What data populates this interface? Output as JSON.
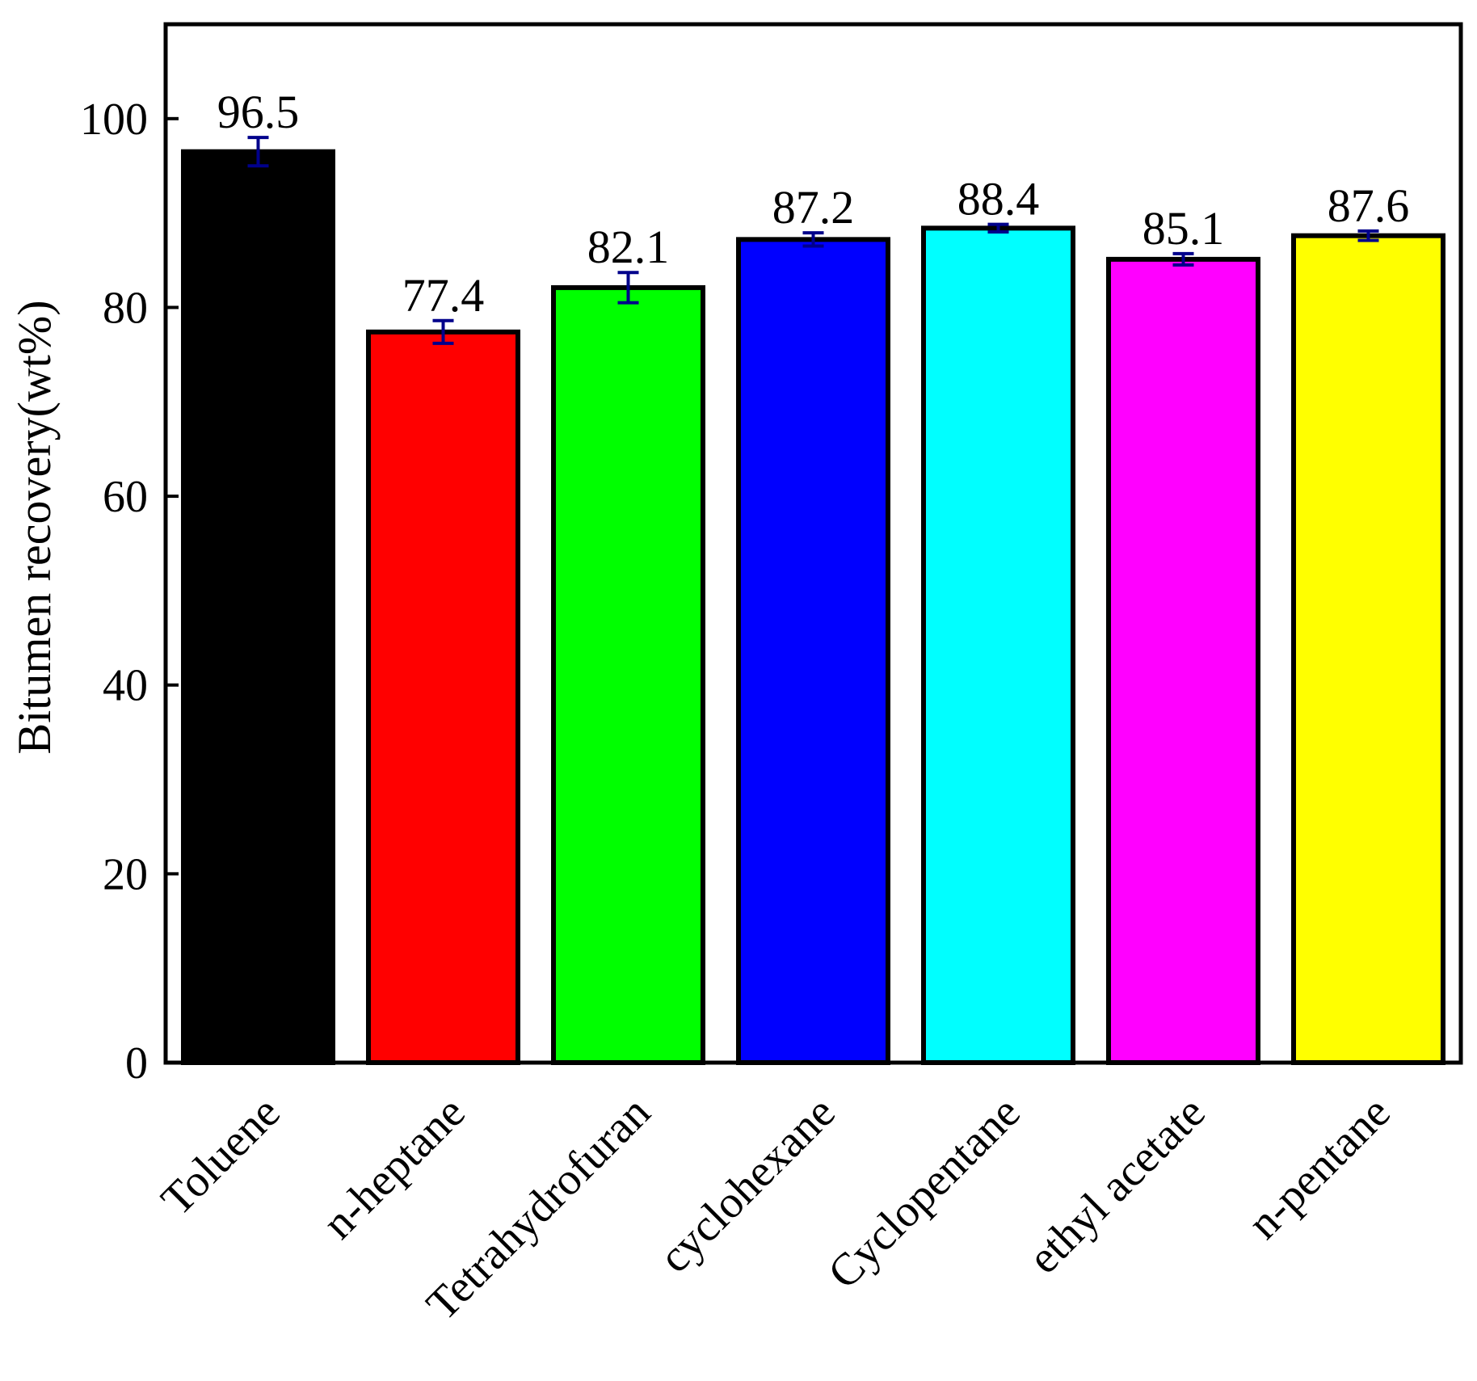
{
  "chart_data": {
    "type": "bar",
    "title": "",
    "xlabel": "",
    "ylabel": "Bitumen recovery(wt%)",
    "ylim": [
      0,
      110
    ],
    "yticks": [
      0,
      20,
      40,
      60,
      80,
      100
    ],
    "grid": false,
    "categories": [
      "Toluene",
      "n-heptane",
      "Tetrahydrofuran",
      "cyclohexane",
      "Cyclopentane",
      "ethyl acetate",
      "n-pentane"
    ],
    "values": [
      96.5,
      77.4,
      82.1,
      87.2,
      88.4,
      85.1,
      87.6
    ],
    "value_labels": [
      "96.5",
      "77.4",
      "82.1",
      "87.2",
      "88.4",
      "85.1",
      "87.6"
    ],
    "errors": [
      1.5,
      1.2,
      1.6,
      0.7,
      0.4,
      0.6,
      0.5
    ],
    "colors": [
      "#000000",
      "#ff0000",
      "#00ff00",
      "#0000ff",
      "#00ffff",
      "#ff00ff",
      "#ffff00"
    ],
    "error_bar_color": "#00008b"
  }
}
